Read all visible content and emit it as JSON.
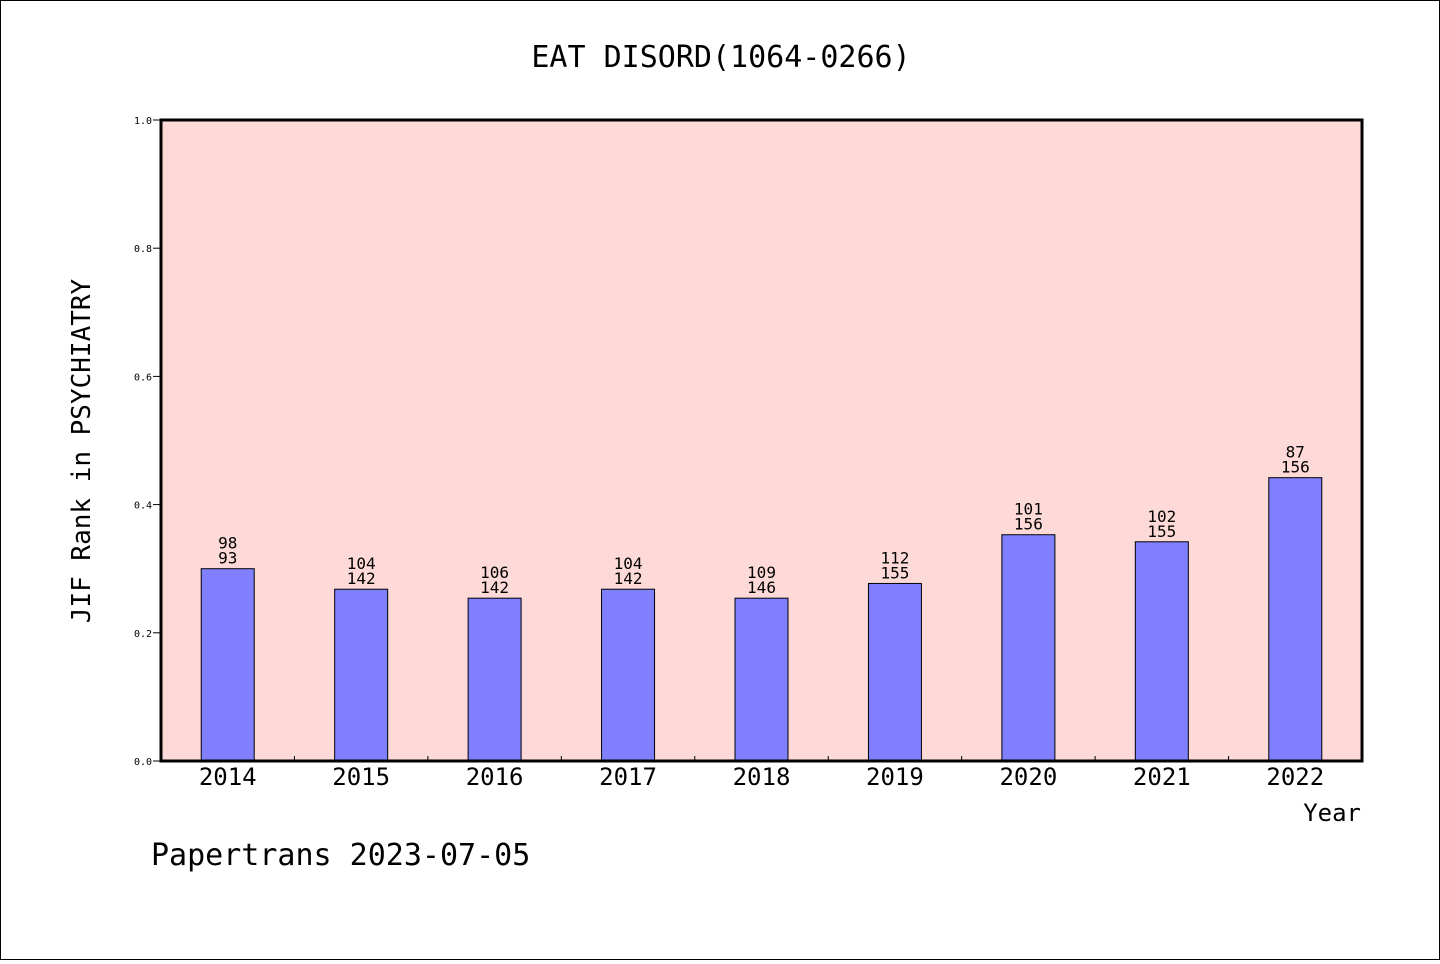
{
  "chart_data": {
    "type": "bar",
    "title": "EAT DISORD(1064-0266)",
    "xlabel": "Year",
    "ylabel": "JIF Rank in PSYCHIATRY",
    "ylim": [
      0,
      1.0
    ],
    "yticks": [
      "0.0",
      "0.2",
      "0.4",
      "0.6",
      "0.8",
      "1.0"
    ],
    "categories": [
      "2014",
      "2015",
      "2016",
      "2017",
      "2018",
      "2019",
      "2020",
      "2021",
      "2022"
    ],
    "values": [
      0.3,
      0.268,
      0.254,
      0.268,
      0.254,
      0.277,
      0.353,
      0.342,
      0.442
    ],
    "labels_top": [
      "98",
      "104",
      "106",
      "104",
      "109",
      "112",
      "101",
      "102",
      "87"
    ],
    "labels_bottom": [
      "93",
      "142",
      "142",
      "142",
      "146",
      "155",
      "156",
      "155",
      "156"
    ],
    "colors": {
      "plot_background": "#fddad8",
      "bar": "#8080ff"
    },
    "grid": false
  },
  "footer": "Papertrans 2023-07-05"
}
